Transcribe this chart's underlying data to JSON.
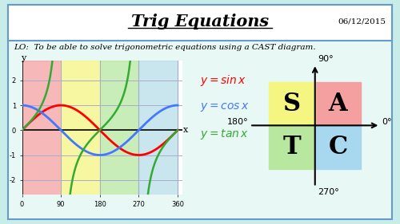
{
  "title": "Trig Equations",
  "date": "06/12/2015",
  "lo_text": "LO:  To be able to solve trigonometric equations using a CAST diagram.",
  "bg_color": "#c8ede8",
  "panel_facecolor": "#e8f8f5",
  "cast_colors": {
    "A": "#f4a0a0",
    "S": "#f5f582",
    "T": "#b8e8a0",
    "C": "#a8d8f0"
  },
  "graph_quad_colors": {
    "0_90": "#f4a0a0",
    "90_180": "#f5f582",
    "180_270": "#b8e8a0",
    "270_360": "#add8e6"
  },
  "sin_color": "#ff0000",
  "cos_color": "#4477ff",
  "tan_color": "#33aa33",
  "grid_color": "#aaaacc",
  "border_color": "#6699cc"
}
